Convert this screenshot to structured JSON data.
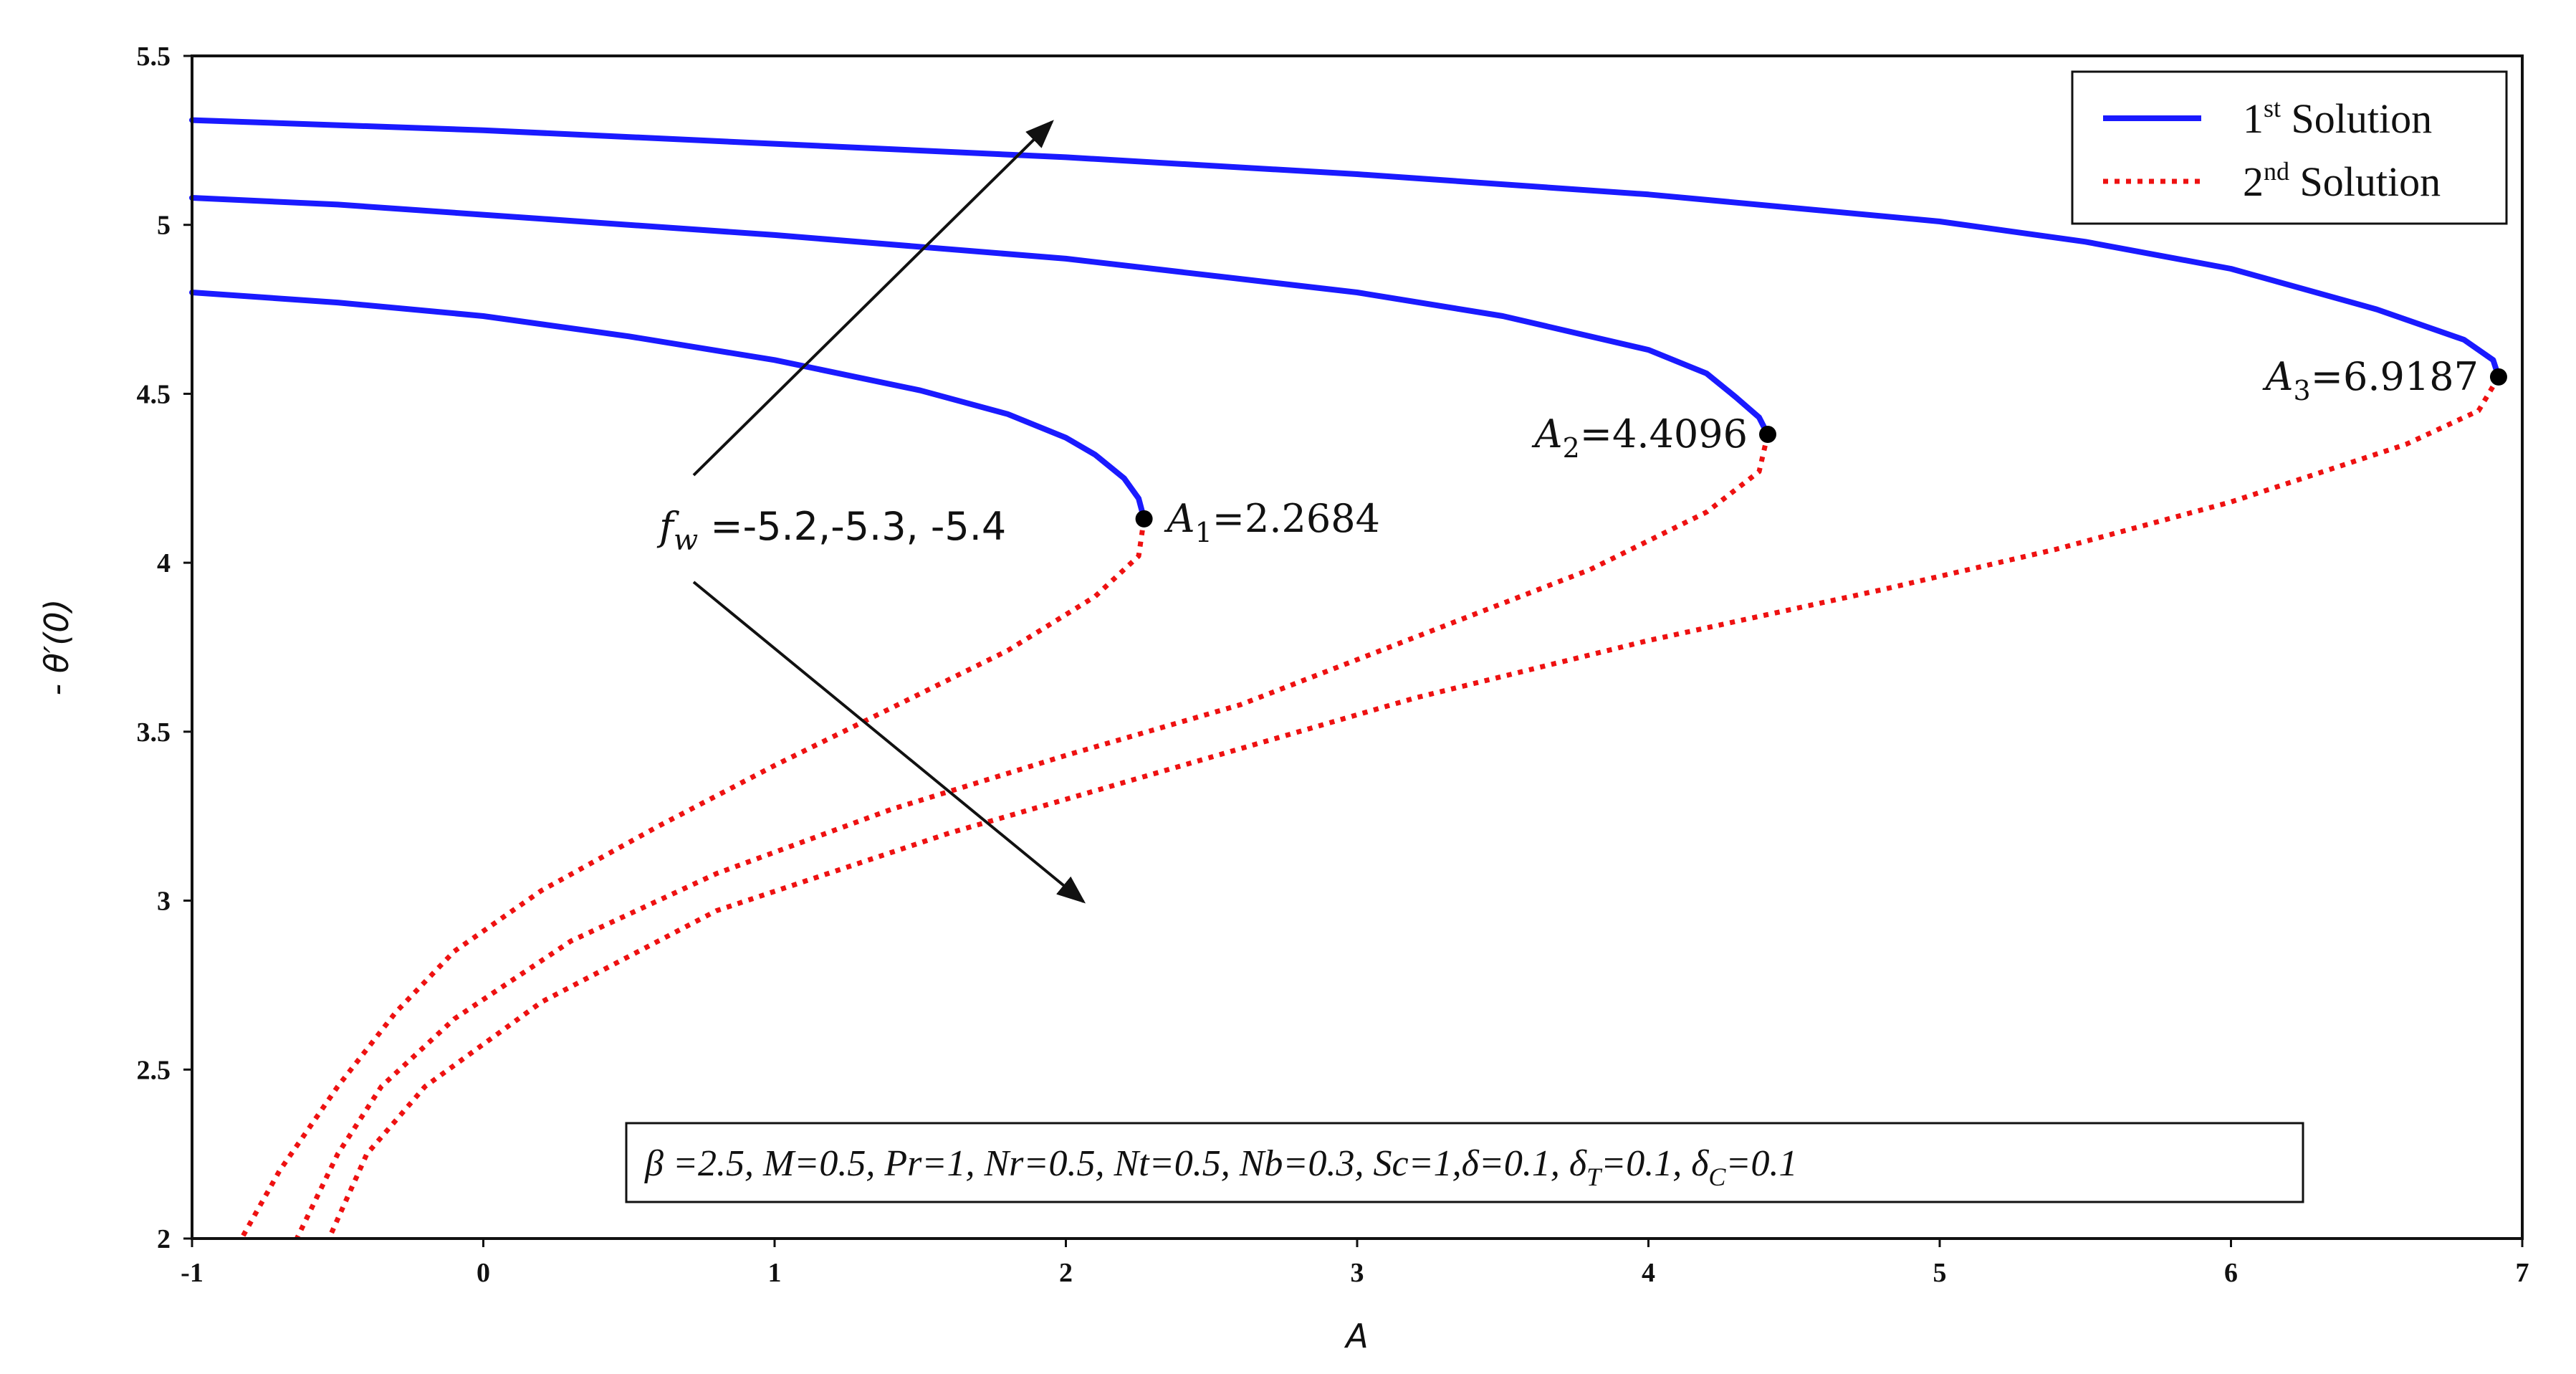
{
  "chart_data": {
    "type": "line",
    "title": "",
    "xlabel": "A",
    "ylabel": "- θ′(0)",
    "xlim": [
      -1,
      7
    ],
    "ylim": [
      2,
      5.5
    ],
    "xticks": [
      "-1",
      "0",
      "1",
      "2",
      "3",
      "4",
      "5",
      "6",
      "7"
    ],
    "yticks": [
      "2",
      "2.5",
      "3",
      "3.5",
      "4",
      "4.5",
      "5",
      "5.5"
    ],
    "grid": false,
    "legend_position": "top-right",
    "colors": {
      "first": "#1a1aff",
      "second": "#ee1111"
    },
    "legend": [
      {
        "base": "1",
        "sup": "st",
        "rest": " Solution",
        "style": "solid",
        "color": "#1a1aff"
      },
      {
        "base": "2",
        "sup": "nd",
        "rest": " Solution",
        "style": "dotted",
        "color": "#ee1111"
      }
    ],
    "series": [
      {
        "fw": -5.2,
        "critical": {
          "label": "A1",
          "value": "2.2684",
          "x": 2.2684,
          "y": 4.13
        },
        "first": {
          "x": [
            -1,
            -0.5,
            0,
            0.5,
            1,
            1.5,
            1.8,
            2.0,
            2.1,
            2.2,
            2.25,
            2.2684
          ],
          "y": [
            4.8,
            4.77,
            4.73,
            4.67,
            4.6,
            4.51,
            4.44,
            4.37,
            4.32,
            4.25,
            4.19,
            4.13
          ]
        },
        "second": {
          "x": [
            2.2684,
            2.25,
            2.1,
            1.8,
            1.4,
            1.0,
            0.6,
            0.2,
            -0.1,
            -0.3,
            -0.5,
            -0.7,
            -0.83
          ],
          "y": [
            4.13,
            4.02,
            3.9,
            3.74,
            3.57,
            3.4,
            3.22,
            3.03,
            2.85,
            2.67,
            2.45,
            2.2,
            2.0
          ]
        }
      },
      {
        "fw": -5.3,
        "critical": {
          "label": "A2",
          "value": "4.4096",
          "x": 4.4096,
          "y": 4.38
        },
        "first": {
          "x": [
            -1,
            -0.5,
            0,
            1,
            2,
            3,
            3.5,
            4.0,
            4.2,
            4.3,
            4.38,
            4.4096
          ],
          "y": [
            5.08,
            5.06,
            5.03,
            4.97,
            4.9,
            4.8,
            4.73,
            4.63,
            4.56,
            4.49,
            4.43,
            4.38
          ]
        },
        "second": {
          "x": [
            4.4096,
            4.38,
            4.2,
            3.8,
            3.2,
            2.6,
            2.0,
            1.4,
            0.8,
            0.3,
            -0.1,
            -0.35,
            -0.5,
            -0.64
          ],
          "y": [
            4.38,
            4.27,
            4.15,
            3.98,
            3.78,
            3.58,
            3.43,
            3.27,
            3.08,
            2.88,
            2.65,
            2.45,
            2.25,
            2.0
          ]
        }
      },
      {
        "fw": -5.4,
        "critical": {
          "label": "A3",
          "value": "6.9187",
          "x": 6.9187,
          "y": 4.55
        },
        "first": {
          "x": [
            -1,
            0,
            1,
            2,
            3,
            4,
            5,
            5.5,
            6.0,
            6.5,
            6.8,
            6.9,
            6.9187
          ],
          "y": [
            5.31,
            5.28,
            5.24,
            5.2,
            5.15,
            5.09,
            5.01,
            4.95,
            4.87,
            4.75,
            4.66,
            4.6,
            4.55
          ]
        },
        "second": {
          "x": [
            6.9187,
            6.85,
            6.6,
            6.0,
            5.4,
            4.8,
            4.0,
            3.2,
            2.4,
            1.6,
            0.8,
            0.2,
            -0.2,
            -0.4,
            -0.53
          ],
          "y": [
            4.55,
            4.45,
            4.35,
            4.18,
            4.04,
            3.92,
            3.77,
            3.6,
            3.4,
            3.2,
            2.97,
            2.7,
            2.45,
            2.25,
            2.0
          ]
        }
      }
    ],
    "fw_label": {
      "var": "f",
      "sub": "w",
      "text": " =-5.2,-5.3, -5.4"
    },
    "params_text": "β =2.5, M=0.5, Pr=1, Nr=0.5, Nt=0.5, Nb=0.3, Sc=1,δ=0.1, δ",
    "params_parts": [
      {
        "t": "β =2.5, M=0.5, Pr=1, Nr=0.5, Nt=0.5, Nb=0.3, Sc=1,δ=0.1, δ"
      },
      {
        "t": "T",
        "sub": true
      },
      {
        "t": "=0.1, δ"
      },
      {
        "t": "C",
        "sub": true
      },
      {
        "t": "=0.1"
      }
    ]
  }
}
